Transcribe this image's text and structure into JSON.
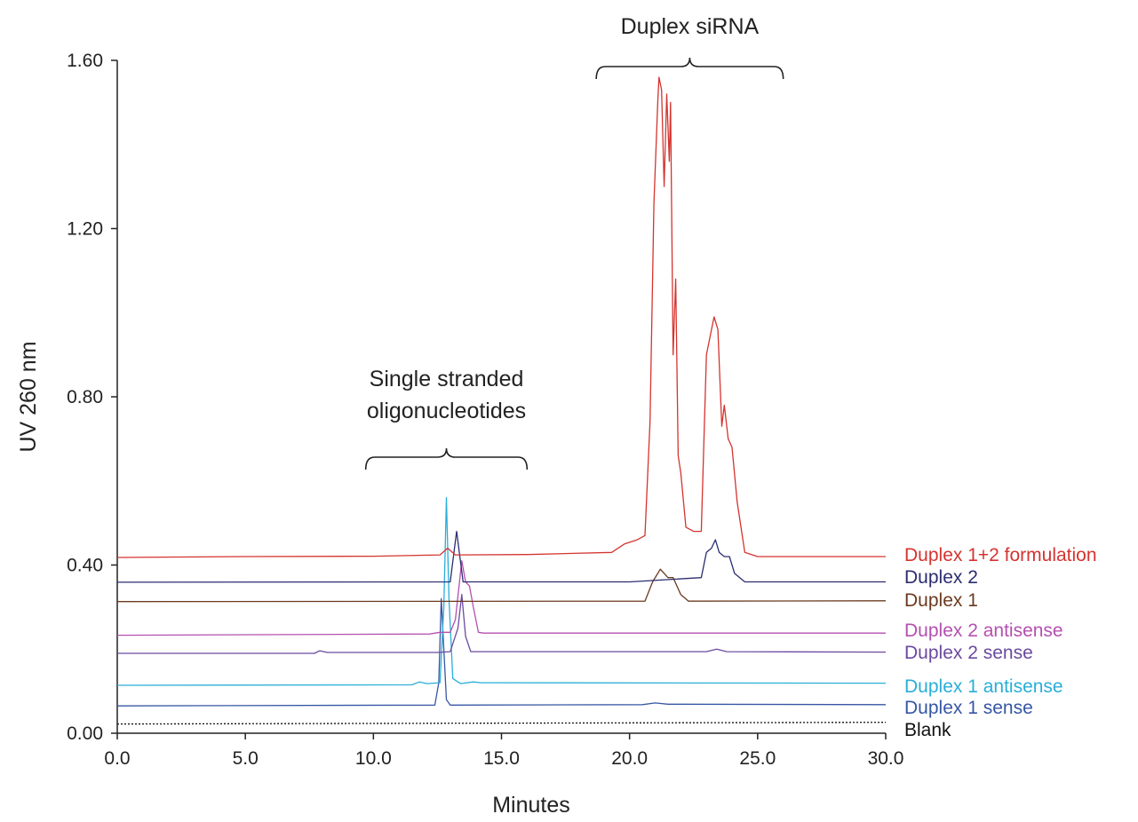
{
  "chart_data": {
    "type": "line",
    "title": "",
    "xlabel": "Minutes",
    "ylabel": "UV 260 nm",
    "xlim": [
      0,
      30
    ],
    "ylim": [
      0,
      1.6
    ],
    "xticks": [
      "0.0",
      "5.0",
      "10.0",
      "15.0",
      "20.0",
      "25.0",
      "30.0"
    ],
    "yticks": [
      "0.00",
      "0.40",
      "0.80",
      "1.20",
      "1.60"
    ],
    "grid": false,
    "legend": "labels at right end of each trace",
    "annotations": [
      {
        "text": "Duplex siRNA",
        "bracket_x": [
          18.7,
          26.0
        ]
      },
      {
        "text": "Single stranded\noligonucleotides",
        "bracket_x": [
          9.7,
          16.0
        ]
      }
    ],
    "series": [
      {
        "name": "Duplex 1+2 formulation",
        "color": "#d4342f",
        "points": [
          [
            0,
            0.418
          ],
          [
            5,
            0.42
          ],
          [
            10,
            0.421
          ],
          [
            12.6,
            0.424
          ],
          [
            12.9,
            0.44
          ],
          [
            13.2,
            0.424
          ],
          [
            16,
            0.425
          ],
          [
            19.3,
            0.43
          ],
          [
            19.8,
            0.45
          ],
          [
            20.3,
            0.46
          ],
          [
            20.6,
            0.47
          ],
          [
            20.8,
            0.74
          ],
          [
            20.95,
            1.26
          ],
          [
            21.1,
            1.5
          ],
          [
            21.15,
            1.56
          ],
          [
            21.25,
            1.53
          ],
          [
            21.35,
            1.3
          ],
          [
            21.45,
            1.52
          ],
          [
            21.55,
            1.36
          ],
          [
            21.6,
            1.5
          ],
          [
            21.7,
            0.9
          ],
          [
            21.8,
            1.08
          ],
          [
            21.9,
            0.66
          ],
          [
            22.0,
            0.62
          ],
          [
            22.2,
            0.49
          ],
          [
            22.5,
            0.48
          ],
          [
            22.8,
            0.48
          ],
          [
            23.0,
            0.9
          ],
          [
            23.2,
            0.96
          ],
          [
            23.3,
            0.99
          ],
          [
            23.45,
            0.96
          ],
          [
            23.6,
            0.73
          ],
          [
            23.7,
            0.78
          ],
          [
            23.85,
            0.7
          ],
          [
            24.0,
            0.68
          ],
          [
            24.2,
            0.55
          ],
          [
            24.5,
            0.43
          ],
          [
            25,
            0.42
          ],
          [
            30,
            0.42
          ]
        ]
      },
      {
        "name": "Duplex 2",
        "color": "#2b2d70",
        "points": [
          [
            0,
            0.359
          ],
          [
            13,
            0.36
          ],
          [
            13.25,
            0.48
          ],
          [
            13.5,
            0.36
          ],
          [
            20,
            0.36
          ],
          [
            22.8,
            0.37
          ],
          [
            23.0,
            0.43
          ],
          [
            23.2,
            0.44
          ],
          [
            23.35,
            0.46
          ],
          [
            23.5,
            0.43
          ],
          [
            23.7,
            0.42
          ],
          [
            23.9,
            0.42
          ],
          [
            24.1,
            0.38
          ],
          [
            24.5,
            0.36
          ],
          [
            30,
            0.36
          ]
        ]
      },
      {
        "name": "Duplex 1",
        "color": "#6b3a1f",
        "points": [
          [
            0,
            0.313
          ],
          [
            20.6,
            0.314
          ],
          [
            20.9,
            0.36
          ],
          [
            21.2,
            0.39
          ],
          [
            21.5,
            0.37
          ],
          [
            21.7,
            0.37
          ],
          [
            22.0,
            0.33
          ],
          [
            22.3,
            0.314
          ],
          [
            30,
            0.315
          ]
        ]
      },
      {
        "name": "Duplex 2 antisense",
        "color": "#b450b0",
        "points": [
          [
            0,
            0.233
          ],
          [
            12.2,
            0.236
          ],
          [
            12.6,
            0.24
          ],
          [
            13.0,
            0.24
          ],
          [
            13.2,
            0.27
          ],
          [
            13.45,
            0.41
          ],
          [
            13.6,
            0.36
          ],
          [
            13.75,
            0.35
          ],
          [
            13.9,
            0.3
          ],
          [
            14.1,
            0.24
          ],
          [
            14.3,
            0.238
          ],
          [
            30,
            0.238
          ]
        ]
      },
      {
        "name": "Duplex 2 sense",
        "color": "#6a4aa0",
        "points": [
          [
            0,
            0.19
          ],
          [
            7.7,
            0.19
          ],
          [
            7.9,
            0.196
          ],
          [
            8.2,
            0.192
          ],
          [
            12.5,
            0.192
          ],
          [
            13.0,
            0.194
          ],
          [
            13.3,
            0.25
          ],
          [
            13.45,
            0.33
          ],
          [
            13.6,
            0.23
          ],
          [
            13.8,
            0.194
          ],
          [
            23.0,
            0.194
          ],
          [
            23.4,
            0.2
          ],
          [
            23.8,
            0.194
          ],
          [
            30,
            0.193
          ]
        ]
      },
      {
        "name": "Duplex 1 antisense",
        "color": "#2aaed8",
        "points": [
          [
            0,
            0.114
          ],
          [
            11.5,
            0.115
          ],
          [
            11.8,
            0.122
          ],
          [
            12.1,
            0.118
          ],
          [
            12.6,
            0.12
          ],
          [
            12.75,
            0.3
          ],
          [
            12.85,
            0.56
          ],
          [
            12.95,
            0.32
          ],
          [
            13.1,
            0.13
          ],
          [
            13.4,
            0.118
          ],
          [
            13.9,
            0.122
          ],
          [
            14.2,
            0.12
          ],
          [
            30,
            0.119
          ]
        ]
      },
      {
        "name": "Duplex 1 sense",
        "color": "#3656a4",
        "points": [
          [
            0,
            0.065
          ],
          [
            12.4,
            0.067
          ],
          [
            12.55,
            0.12
          ],
          [
            12.65,
            0.32
          ],
          [
            12.75,
            0.2
          ],
          [
            12.85,
            0.08
          ],
          [
            13.0,
            0.067
          ],
          [
            20.5,
            0.068
          ],
          [
            21.0,
            0.072
          ],
          [
            21.5,
            0.069
          ],
          [
            30,
            0.068
          ]
        ]
      },
      {
        "name": "Blank",
        "color": "#111111",
        "dashed": true,
        "points": [
          [
            0,
            0.022
          ],
          [
            30,
            0.026
          ]
        ]
      }
    ]
  }
}
